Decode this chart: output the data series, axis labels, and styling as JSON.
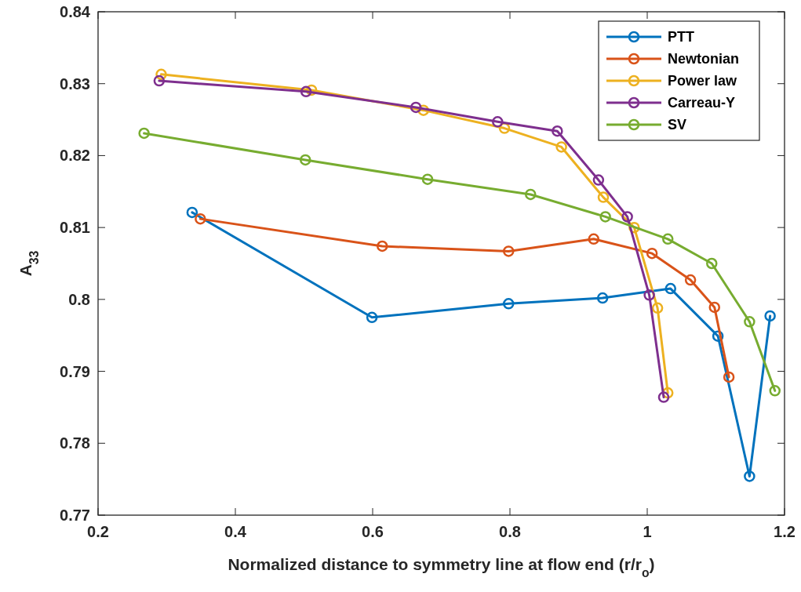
{
  "chart_data": {
    "type": "line",
    "xlabel": "Normalized distance to symmetry line at flow end (r/r$_{o}$)",
    "ylabel": "A$_{33}$",
    "xlim": [
      0.2,
      1.2
    ],
    "xticks": [
      0.2,
      0.4,
      0.6,
      0.8,
      1,
      1.2
    ],
    "ylim": [
      0.77,
      0.84
    ],
    "yticks": [
      0.77,
      0.78,
      0.79,
      0.8,
      0.81,
      0.82,
      0.83,
      0.84
    ],
    "grid": false,
    "legend": "top right",
    "marker": "circle",
    "line_style": "solid",
    "series": [
      {
        "name": "PTT",
        "color": "#0072bd",
        "x": [
          0.337,
          0.599,
          0.798,
          0.935,
          1.034,
          1.103,
          1.149,
          1.179
        ],
        "values": [
          0.8121,
          0.7975,
          0.7994,
          0.8002,
          0.8015,
          0.7949,
          0.7754,
          0.7977
        ]
      },
      {
        "name": "Newtonian",
        "color": "#d95319",
        "x": [
          0.349,
          0.614,
          0.798,
          0.922,
          1.007,
          1.063,
          1.098,
          1.119
        ],
        "values": [
          0.8112,
          0.8074,
          0.8067,
          0.8084,
          0.8064,
          0.8027,
          0.7989,
          0.7892
        ]
      },
      {
        "name": "Power law",
        "color": "#edb120",
        "x": [
          0.292,
          0.511,
          0.674,
          0.792,
          0.875,
          0.936,
          0.981,
          1.015,
          1.03
        ],
        "values": [
          0.8313,
          0.8291,
          0.8263,
          0.8238,
          0.8212,
          0.8142,
          0.81,
          0.7988,
          0.787
        ]
      },
      {
        "name": "Carreau-Y",
        "color": "#7e2f8e",
        "x": [
          0.289,
          0.503,
          0.663,
          0.782,
          0.869,
          0.929,
          0.971,
          1.003,
          1.024
        ],
        "values": [
          0.8304,
          0.8289,
          0.8267,
          0.8247,
          0.8234,
          0.8166,
          0.8115,
          0.8006,
          0.7864
        ]
      },
      {
        "name": "SV",
        "color": "#77ac30",
        "x": [
          0.267,
          0.502,
          0.68,
          0.83,
          0.939,
          1.03,
          1.094,
          1.149,
          1.186
        ],
        "values": [
          0.8231,
          0.8194,
          0.8167,
          0.8146,
          0.8115,
          0.8084,
          0.805,
          0.7969,
          0.7873
        ]
      }
    ]
  }
}
